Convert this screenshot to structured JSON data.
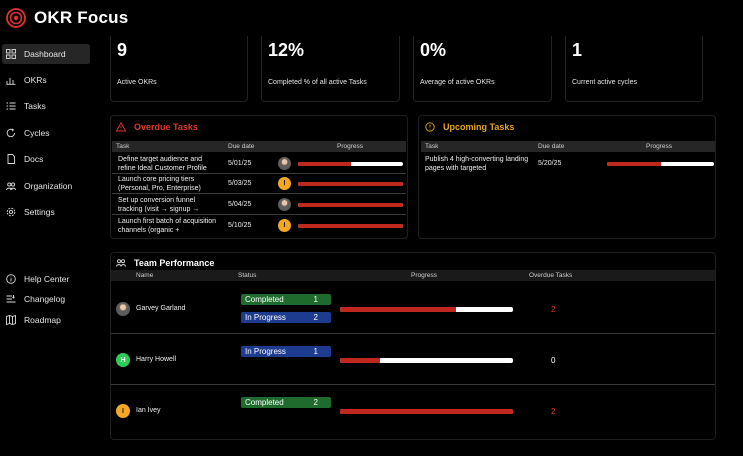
{
  "app": {
    "title": "OKR Focus"
  },
  "sidebar": {
    "items": [
      {
        "label": "Dashboard",
        "icon": "dashboard-icon",
        "active": true
      },
      {
        "label": "OKRs",
        "icon": "chart-icon"
      },
      {
        "label": "Tasks",
        "icon": "list-icon"
      },
      {
        "label": "Cycles",
        "icon": "cycle-icon"
      },
      {
        "label": "Docs",
        "icon": "doc-icon"
      },
      {
        "label": "Organization",
        "icon": "people-icon"
      },
      {
        "label": "Settings",
        "icon": "gear-icon"
      }
    ],
    "footer": [
      {
        "label": "Help Center",
        "icon": "info-icon"
      },
      {
        "label": "Changelog",
        "icon": "changelog-icon"
      },
      {
        "label": "Roadmap",
        "icon": "map-icon"
      }
    ]
  },
  "stats": [
    {
      "value": "9",
      "label": "Active OKRs"
    },
    {
      "value": "12%",
      "label": "Completed %  of all active Tasks"
    },
    {
      "value": "0%",
      "label": "Average of active OKRs"
    },
    {
      "value": "1",
      "label": "Current active cycles"
    }
  ],
  "overdue": {
    "title": "Overdue Tasks",
    "columns": [
      "Task",
      "Due date",
      "Progress"
    ],
    "rows": [
      {
        "task": "Define target audience and refine Ideal Customer Profile",
        "due": "5/01/25",
        "avatar": "photo",
        "progress": 0.5
      },
      {
        "task": "Launch core pricing tiers (Personal, Pro, Enterprise)",
        "due": "5/03/25",
        "avatar": "I",
        "progress": 1.0
      },
      {
        "task": "Set up conversion funnel tracking (visit → signup →",
        "due": "5/04/25",
        "avatar": "photo",
        "progress": 1.0
      },
      {
        "task": "Launch first batch of acquisition channels (organic +",
        "due": "5/10/25",
        "avatar": "I",
        "progress": 1.0
      }
    ]
  },
  "upcoming": {
    "title": "Upcoming Tasks",
    "columns": [
      "Task",
      "Due date",
      "Progress"
    ],
    "rows": [
      {
        "task": "Publish 4 high-converting landing pages with targeted",
        "due": "5/20/25",
        "progress": 0.5
      }
    ]
  },
  "team": {
    "title": "Team Performance",
    "columns": [
      "Name",
      "Status",
      "Progress",
      "Overdue Tasks"
    ],
    "members": [
      {
        "name": "Garvey Garland",
        "avatar": "photo",
        "statuses": [
          {
            "label": "Completed",
            "count": "1",
            "kind": "done"
          },
          {
            "label": "In Progress",
            "count": "2",
            "kind": "prog"
          }
        ],
        "progress": 0.67,
        "overdue": "2",
        "overdue_color": "#e0342a"
      },
      {
        "name": "Harry Howell",
        "avatar": "H",
        "statuses": [
          {
            "label": "In Progress",
            "count": "1",
            "kind": "prog"
          }
        ],
        "progress": 0.23,
        "overdue": "0",
        "overdue_color": "#ffffff"
      },
      {
        "name": "Ian Ivey",
        "avatar": "I",
        "statuses": [
          {
            "label": "Completed",
            "count": "2",
            "kind": "done"
          }
        ],
        "progress": 1.0,
        "overdue": "2",
        "overdue_color": "#e0342a"
      }
    ]
  },
  "colors": {
    "accent_red": "#c0281e",
    "warn_orange": "#f5a623",
    "overdue_title": "#e03a2a",
    "upcoming_title": "#e8a324"
  }
}
